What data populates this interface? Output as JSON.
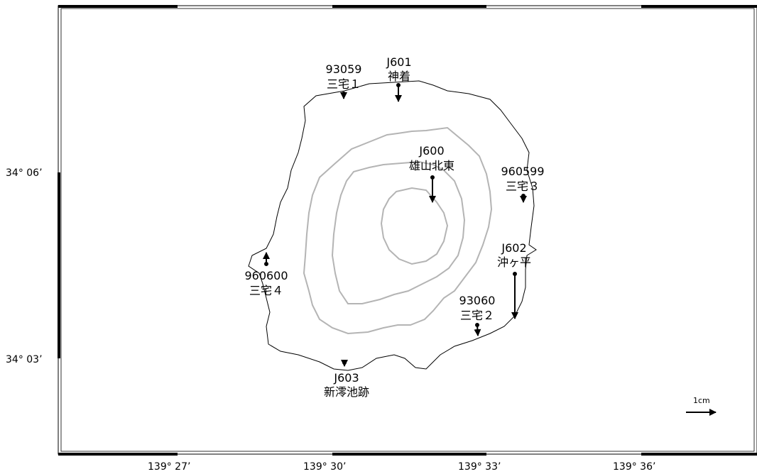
{
  "map": {
    "lat_labels": [
      "34° 06’",
      "34° 03’"
    ],
    "lon_labels": [
      "139° 27’",
      "139° 30’",
      "139° 33’",
      "139° 36’"
    ],
    "scale_label": "1cm",
    "stations": [
      {
        "id": "93059",
        "name": "三宅１"
      },
      {
        "id": "J601",
        "name": "神着"
      },
      {
        "id": "J600",
        "name": "雄山北東"
      },
      {
        "id": "960599",
        "name": "三宅３"
      },
      {
        "id": "J602",
        "name": "沖ヶ平"
      },
      {
        "id": "960600",
        "name": "三宅４"
      },
      {
        "id": "93060",
        "name": "三宅２"
      },
      {
        "id": "J603",
        "name": "新澪池跡"
      }
    ]
  }
}
